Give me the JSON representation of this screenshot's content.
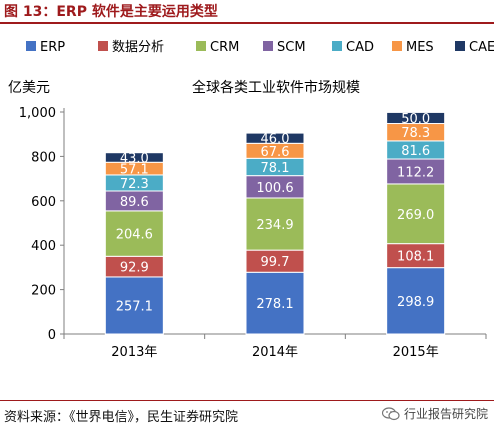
{
  "heading": "图 13：ERP 软件是主要运用类型",
  "source": "资料来源：《世界电信》，民生证券研究院",
  "watermark": "行业报告研究院",
  "watermark_icon": "wechat-icon",
  "chart_data": {
    "type": "bar",
    "stacked": true,
    "title": "全球各类工业软件市场规模",
    "ylabel": "亿美元",
    "xlabel": "",
    "ylim": [
      0,
      1000
    ],
    "yticks": [
      0,
      200,
      400,
      600,
      800,
      1000
    ],
    "ytick_labels": [
      "0",
      "200",
      "400",
      "600",
      "800",
      "1,000"
    ],
    "grid": false,
    "legend_position": "top",
    "categories": [
      "2013年",
      "2014年",
      "2015年"
    ],
    "series": [
      {
        "name": "ERP",
        "color": "#4472c4",
        "values": [
          257.1,
          278.1,
          298.9
        ],
        "labels": [
          "257.1",
          "278.1",
          "298.9"
        ]
      },
      {
        "name": "数据分析",
        "color": "#c0504d",
        "values": [
          92.9,
          99.7,
          108.1
        ],
        "labels": [
          "92.9",
          "99.7",
          "108.1"
        ]
      },
      {
        "name": "CRM",
        "color": "#9bbb59",
        "values": [
          204.6,
          234.9,
          269.0
        ],
        "labels": [
          "204.6",
          "234.9",
          "269.0"
        ]
      },
      {
        "name": "SCM",
        "color": "#8064a2",
        "values": [
          89.6,
          100.6,
          112.2
        ],
        "labels": [
          "89.6",
          "100.6",
          "112.2"
        ]
      },
      {
        "name": "CAD",
        "color": "#4bacc6",
        "values": [
          72.3,
          78.1,
          81.6
        ],
        "labels": [
          "72.3",
          "78.1",
          "81.6"
        ]
      },
      {
        "name": "MES",
        "color": "#f79646",
        "values": [
          57.1,
          67.6,
          78.3
        ],
        "labels": [
          "57.1",
          "67.6",
          "78.3"
        ]
      },
      {
        "name": "CAE",
        "color": "#1f3864",
        "values": [
          43.0,
          46.0,
          50.0
        ],
        "labels": [
          "43.0",
          "46.0",
          "50.0"
        ]
      }
    ]
  }
}
